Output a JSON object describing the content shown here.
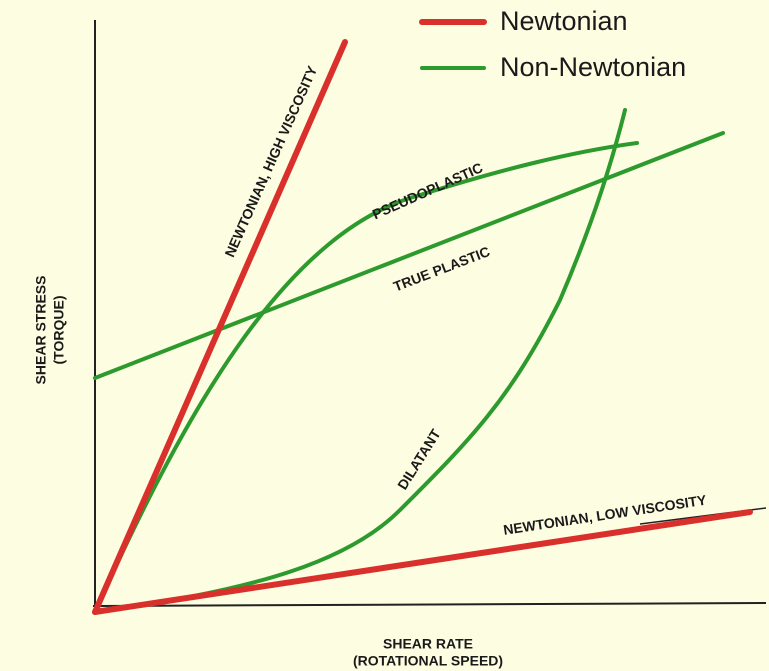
{
  "legend": {
    "items": [
      {
        "label": "Newtonian"
      },
      {
        "label": "Non-Newtonian"
      }
    ]
  },
  "curves": [
    {
      "label": "NEWTONIAN, HIGH VISCOSITY"
    },
    {
      "label": "PSEUDOPLASTIC"
    },
    {
      "label": "TRUE PLASTIC"
    },
    {
      "label": "DILATANT"
    },
    {
      "label": "NEWTONIAN, LOW VISCOSITY"
    }
  ],
  "y_axis": {
    "label": "SHEAR STRESS",
    "sublabel": "(TORQUE)"
  },
  "x_axis": {
    "label": "SHEAR RATE",
    "sublabel": "(ROTATIONAL SPEED)"
  }
}
